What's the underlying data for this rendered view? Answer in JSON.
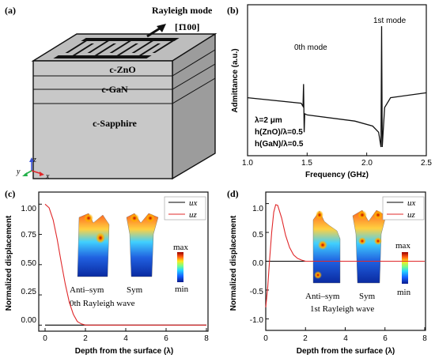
{
  "panels": {
    "a": {
      "label": "(a)",
      "mode_label": "Rayleigh mode",
      "direction_label": "[1̄100]",
      "layers": [
        "c-ZnO",
        "c-GaN",
        "c-Sapphire"
      ],
      "axes": {
        "x": "x",
        "y": "y",
        "z": "z"
      }
    },
    "b": {
      "label": "(b)",
      "mode0_label": "0th mode",
      "mode1_label": "1st mode",
      "params": [
        "λ=2 μm",
        "h(ZnO)/λ=0.5",
        "h(GaN)/λ=0.5"
      ]
    },
    "c": {
      "label": "(c)",
      "wave_label": "0th Rayleigh wave",
      "shape_labels": [
        "Anti–sym",
        "Sym"
      ],
      "colorbar": {
        "max": "max",
        "min": "min"
      }
    },
    "d": {
      "label": "(d)",
      "wave_label": "1st Rayleigh wave",
      "shape_labels": [
        "Anti–sym",
        "Sym"
      ],
      "colorbar": {
        "max": "max",
        "min": "min"
      }
    }
  },
  "chart_data": [
    {
      "id": "b",
      "type": "line",
      "xlabel": "Frequency (GHz)",
      "ylabel": "Admittance (a.u.)",
      "xlim": [
        1.0,
        2.5
      ],
      "xticks": [
        "1.0",
        "1.5",
        "2.0",
        "2.5"
      ],
      "yticks": [],
      "series": [
        {
          "values": [
            [
              1.0,
              0.4
            ],
            [
              1.45,
              0.355
            ],
            [
              1.465,
              0.33
            ],
            [
              1.47,
              0.51
            ],
            [
              1.475,
              0.12
            ],
            [
              1.48,
              0.27
            ],
            [
              1.5,
              0.26
            ],
            [
              1.9,
              0.21
            ],
            [
              2.05,
              0.17
            ],
            [
              2.1,
              0.12
            ],
            [
              2.12,
              0.0
            ],
            [
              2.125,
              0.98
            ],
            [
              2.13,
              0.0
            ],
            [
              2.15,
              0.32
            ],
            [
              2.2,
              0.4
            ],
            [
              2.5,
              0.44
            ]
          ]
        }
      ]
    },
    {
      "id": "c",
      "type": "line",
      "xlabel": "Depth from the surface (λ)",
      "ylabel": "Normalized displacement",
      "xlim": [
        0,
        8
      ],
      "ylim": [
        -0.05,
        1.1
      ],
      "xticks": [
        "0",
        "2",
        "4",
        "6",
        "8"
      ],
      "yticks": [
        "0.00",
        "0.25",
        "0.50",
        "0.75",
        "1.00"
      ],
      "legend": "top-right",
      "series": [
        {
          "name": "ux",
          "color": "#000000",
          "values": [
            [
              0,
              0
            ],
            [
              8,
              0
            ]
          ]
        },
        {
          "name": "uz",
          "color": "#e0282a",
          "values": [
            [
              0,
              1.0
            ],
            [
              0.2,
              0.97
            ],
            [
              0.4,
              0.87
            ],
            [
              0.6,
              0.71
            ],
            [
              0.8,
              0.52
            ],
            [
              1.0,
              0.34
            ],
            [
              1.2,
              0.19
            ],
            [
              1.4,
              0.09
            ],
            [
              1.6,
              0.03
            ],
            [
              1.8,
              0.01
            ],
            [
              2.0,
              0.0
            ],
            [
              8,
              0.0
            ]
          ]
        }
      ]
    },
    {
      "id": "d",
      "type": "line",
      "xlabel": "Depth from the surface (λ)",
      "ylabel": "Normalized displacement",
      "xlim": [
        0,
        8
      ],
      "ylim": [
        -1.2,
        1.2
      ],
      "xticks": [
        "0",
        "2",
        "4",
        "6",
        "8"
      ],
      "yticks": [
        "-1.0",
        "-0.5",
        "0.0",
        "0.5",
        "1.0"
      ],
      "legend": "top-right",
      "series": [
        {
          "name": "ux",
          "color": "#000000",
          "values": [
            [
              0,
              0
            ],
            [
              8,
              0
            ]
          ]
        },
        {
          "name": "uz",
          "color": "#e0282a",
          "values": [
            [
              0,
              -0.8
            ],
            [
              0.1,
              -0.45
            ],
            [
              0.2,
              0.05
            ],
            [
              0.3,
              0.5
            ],
            [
              0.4,
              0.85
            ],
            [
              0.5,
              0.98
            ],
            [
              0.6,
              0.97
            ],
            [
              0.8,
              0.75
            ],
            [
              1.0,
              0.45
            ],
            [
              1.2,
              0.24
            ],
            [
              1.4,
              0.11
            ],
            [
              1.6,
              0.05
            ],
            [
              1.8,
              0.02
            ],
            [
              2.0,
              0.0
            ],
            [
              8,
              0.0
            ]
          ]
        }
      ]
    }
  ]
}
